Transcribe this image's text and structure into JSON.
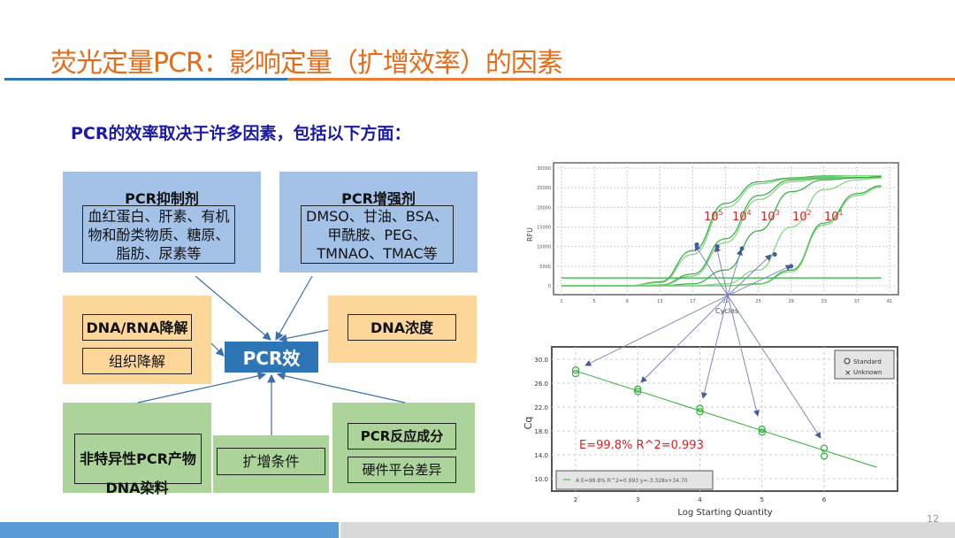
{
  "slide": {
    "title": "荧光定量PCR：影响定量（扩增效率）的因素",
    "subtitle": "PCR的效率取决于许多因素，包括以下方面：",
    "page_number": "12",
    "colors": {
      "title": "#e46c1a",
      "accent_blue": "#2e75b6",
      "accent_orange": "#ed7d31"
    }
  },
  "diagram": {
    "center": "PCR效",
    "inhibitors": {
      "title": "PCR抑制剂",
      "text": "血红蛋白、肝素、有机物和酚类物质、糖原、脂肪、尿素等"
    },
    "enhancers": {
      "title": "PCR增强剂",
      "text": "DMSO、甘油、BSA、甲酰胺、PEG、TMNAO、TMAC等"
    },
    "degradation": [
      "DNA/RNA降解",
      "组织降解"
    ],
    "concentration": "DNA浓度",
    "nonspecific": {
      "box": "非特异性PCR产物",
      "extra": "DNA染料"
    },
    "conditions": "扩增条件",
    "components": [
      "PCR反应成分",
      "硬件平台差异"
    ]
  },
  "chart_data": [
    {
      "type": "line",
      "xlabel": "Cycles",
      "ylabel": "RFU",
      "xlim": [
        0,
        42
      ],
      "ylim": [
        -2500,
        32000
      ],
      "xticks": [
        1,
        5,
        9,
        13,
        17,
        21,
        25,
        29,
        33,
        37,
        41
      ],
      "yticks": [
        0,
        5000,
        10000,
        15000,
        20000,
        25000,
        30000
      ],
      "grid": true,
      "annotations": [
        {
          "base": "10",
          "exp": "5"
        },
        {
          "base": "10",
          "exp": "4"
        },
        {
          "base": "10",
          "exp": "3"
        },
        {
          "base": "10",
          "exp": "2"
        },
        {
          "base": "10",
          "exp": "1"
        }
      ],
      "x": [
        1,
        5,
        9,
        13,
        17,
        21,
        25,
        29,
        33,
        37,
        40
      ],
      "series": [
        {
          "values": [
            0,
            0,
            0,
            1000,
            9000,
            21000,
            26500,
            27500,
            28000,
            28000,
            28000
          ]
        },
        {
          "values": [
            0,
            0,
            0,
            800,
            8000,
            20000,
            26000,
            27300,
            27800,
            28000,
            28000
          ]
        },
        {
          "values": [
            0,
            0,
            0,
            200,
            3000,
            12000,
            23000,
            27000,
            27500,
            27600,
            27600
          ]
        },
        {
          "values": [
            0,
            0,
            0,
            100,
            2500,
            11000,
            22000,
            26500,
            27300,
            27500,
            27500
          ]
        },
        {
          "values": [
            0,
            0,
            0,
            0,
            500,
            4000,
            14000,
            24000,
            27000,
            27500,
            27800
          ]
        },
        {
          "values": [
            0,
            0,
            0,
            0,
            0,
            500,
            4000,
            15000,
            24500,
            27000,
            27500
          ]
        },
        {
          "values": [
            0,
            0,
            0,
            0,
            0,
            0,
            500,
            4000,
            16000,
            23500,
            25500
          ]
        },
        {
          "values": [
            0,
            0,
            0,
            0,
            0,
            0,
            400,
            3600,
            15500,
            23000,
            25200
          ]
        },
        {
          "values": [
            2000,
            2000,
            2000,
            2000,
            2000,
            2000,
            2000,
            2000,
            2000,
            2000,
            2000
          ]
        }
      ],
      "threshold_markers": [
        [
          17.5,
          10500
        ],
        [
          20,
          10000
        ],
        [
          23,
          9500
        ],
        [
          27,
          8000
        ],
        [
          29,
          5000
        ]
      ],
      "line_color": "#2fae3a",
      "annotation_color": "#e02020"
    },
    {
      "type": "scatter",
      "xlabel": "Log Starting Quantity",
      "ylabel": "Cq",
      "xlim": [
        1.6,
        7.0
      ],
      "ylim": [
        8.0,
        31.3
      ],
      "xticks": [
        2,
        3,
        4,
        5,
        6
      ],
      "yticks": [
        "10.0",
        "14.0",
        "18.0",
        "22.0",
        "26.0",
        "30.0"
      ],
      "grid": true,
      "points": [
        [
          2,
          28.2
        ],
        [
          2,
          27.6
        ],
        [
          3,
          25.0
        ],
        [
          3,
          24.6
        ],
        [
          4,
          21.8
        ],
        [
          4,
          21.2
        ],
        [
          5,
          18.3
        ],
        [
          5,
          17.8
        ],
        [
          6,
          15.1
        ],
        [
          6,
          13.8
        ]
      ],
      "fit": {
        "slope": -3.328,
        "intercept": 34.7,
        "x_range": [
          2,
          6.85
        ]
      },
      "annotation": "E=99.8%  R^2=0.993",
      "legend": {
        "position": "top-right",
        "entries": [
          "Standard",
          "Unknown"
        ]
      },
      "fit_legend": "A E=99.8% R^2=0.993 y=-3.328x+34.70",
      "point_color": "#2fae3a",
      "annotation_color": "#e02020"
    }
  ]
}
